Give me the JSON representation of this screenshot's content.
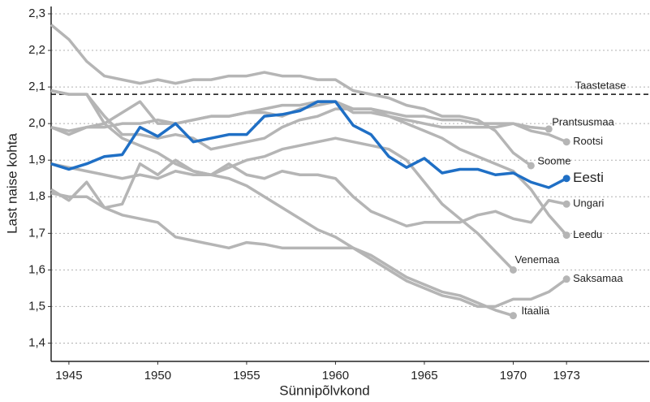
{
  "chart_data": {
    "type": "line",
    "x_label": "Sünnipõlvkond",
    "y_label": "Last naise kohta",
    "x": [
      1944,
      1945,
      1946,
      1947,
      1948,
      1949,
      1950,
      1951,
      1952,
      1953,
      1954,
      1955,
      1956,
      1957,
      1958,
      1959,
      1960,
      1961,
      1962,
      1963,
      1964,
      1965,
      1966,
      1967,
      1968,
      1969,
      1970,
      1971,
      1972,
      1973
    ],
    "xlim": [
      1944,
      1977.65
    ],
    "xticks": [
      1945,
      1950,
      1955,
      1960,
      1965,
      1970,
      1973
    ],
    "ylim": [
      1.35,
      2.32
    ],
    "yticks": [
      {
        "value": 1.4,
        "label": "1,4"
      },
      {
        "value": 1.5,
        "label": "1,5"
      },
      {
        "value": 1.6,
        "label": "1,6"
      },
      {
        "value": 1.7,
        "label": "1,7"
      },
      {
        "value": 1.8,
        "label": "1,8"
      },
      {
        "value": 1.9,
        "label": "1,9"
      },
      {
        "value": 2.0,
        "label": "2,0"
      },
      {
        "value": 2.1,
        "label": "2,1"
      },
      {
        "value": 2.2,
        "label": "2,2"
      },
      {
        "value": 2.3,
        "label": "2,3"
      }
    ],
    "grid": true,
    "reference_line": {
      "value": 2.08,
      "label": "Taastetase"
    },
    "series": [
      {
        "name": "Prantsusmaa",
        "color": "#b5b5b5",
        "values": [
          2.09,
          2.08,
          2.08,
          2.02,
          1.97,
          1.97,
          1.96,
          1.97,
          1.96,
          1.93,
          1.94,
          1.95,
          1.96,
          1.99,
          2.01,
          2.02,
          2.04,
          2.04,
          2.04,
          2.03,
          2.02,
          2.02,
          2.01,
          2.01,
          2.0,
          2.0,
          2.0,
          1.99,
          1.985,
          null
        ]
      },
      {
        "name": "Rootsi",
        "color": "#b5b5b5",
        "values": [
          1.99,
          1.97,
          1.99,
          2.0,
          2.03,
          2.06,
          2.0,
          2.0,
          2.01,
          2.02,
          2.02,
          2.03,
          2.04,
          2.05,
          2.05,
          2.06,
          2.06,
          2.03,
          2.03,
          2.02,
          2.01,
          2.0,
          1.99,
          1.99,
          1.99,
          1.99,
          2.0,
          1.98,
          1.97,
          1.95
        ]
      },
      {
        "name": "Soome",
        "color": "#b5b5b5",
        "values": [
          2.27,
          2.23,
          2.17,
          2.13,
          2.12,
          2.11,
          2.12,
          2.11,
          2.12,
          2.12,
          2.13,
          2.13,
          2.14,
          2.13,
          2.13,
          2.12,
          2.12,
          2.09,
          2.08,
          2.07,
          2.05,
          2.04,
          2.02,
          2.02,
          2.01,
          1.98,
          1.92,
          1.885,
          null,
          null
        ]
      },
      {
        "name": "Ungari",
        "color": "#b5b5b5",
        "values": [
          1.82,
          1.79,
          1.84,
          1.77,
          1.78,
          1.89,
          1.86,
          1.9,
          1.87,
          1.86,
          1.89,
          1.86,
          1.85,
          1.87,
          1.86,
          1.86,
          1.85,
          1.8,
          1.76,
          1.74,
          1.72,
          1.73,
          1.73,
          1.73,
          1.75,
          1.76,
          1.74,
          1.73,
          1.79,
          1.78
        ]
      },
      {
        "name": "Leedu",
        "color": "#b5b5b5",
        "values": [
          1.99,
          1.98,
          1.99,
          1.99,
          2.0,
          2.0,
          2.01,
          2.0,
          2.01,
          2.02,
          2.02,
          2.03,
          2.03,
          2.02,
          2.04,
          2.05,
          2.06,
          2.04,
          2.04,
          2.02,
          2.0,
          1.98,
          1.96,
          1.93,
          1.91,
          1.89,
          1.87,
          1.82,
          1.75,
          1.695
        ]
      },
      {
        "name": "Venemaa",
        "color": "#b5b5b5",
        "values": [
          1.89,
          1.88,
          1.87,
          1.86,
          1.85,
          1.86,
          1.85,
          1.87,
          1.86,
          1.86,
          1.88,
          1.9,
          1.91,
          1.93,
          1.94,
          1.95,
          1.96,
          1.95,
          1.94,
          1.93,
          1.9,
          1.84,
          1.78,
          1.74,
          1.7,
          1.65,
          1.6,
          null,
          null,
          null
        ]
      },
      {
        "name": "Saksamaa",
        "color": "#b5b5b5",
        "values": [
          2.09,
          2.08,
          2.08,
          2.0,
          1.96,
          1.94,
          1.92,
          1.89,
          1.87,
          1.86,
          1.85,
          1.83,
          1.8,
          1.77,
          1.74,
          1.71,
          1.69,
          1.66,
          1.63,
          1.6,
          1.57,
          1.55,
          1.53,
          1.52,
          1.5,
          1.5,
          1.52,
          1.52,
          1.54,
          1.575
        ]
      },
      {
        "name": "Itaalia",
        "color": "#b5b5b5",
        "values": [
          1.81,
          1.8,
          1.8,
          1.77,
          1.75,
          1.74,
          1.73,
          1.69,
          1.68,
          1.67,
          1.66,
          1.675,
          1.67,
          1.66,
          1.66,
          1.66,
          1.66,
          1.66,
          1.64,
          1.61,
          1.58,
          1.56,
          1.54,
          1.53,
          1.51,
          1.49,
          1.475,
          null,
          null,
          null
        ]
      },
      {
        "name": "Eesti",
        "color": "#1f6fc5",
        "values": [
          1.89,
          1.875,
          1.89,
          1.91,
          1.915,
          1.99,
          1.965,
          2.0,
          1.95,
          1.96,
          1.97,
          1.97,
          2.02,
          2.025,
          2.035,
          2.06,
          2.06,
          1.995,
          1.97,
          1.91,
          1.88,
          1.905,
          1.865,
          1.875,
          1.875,
          1.86,
          1.865,
          1.84,
          1.825,
          1.85
        ]
      }
    ]
  }
}
